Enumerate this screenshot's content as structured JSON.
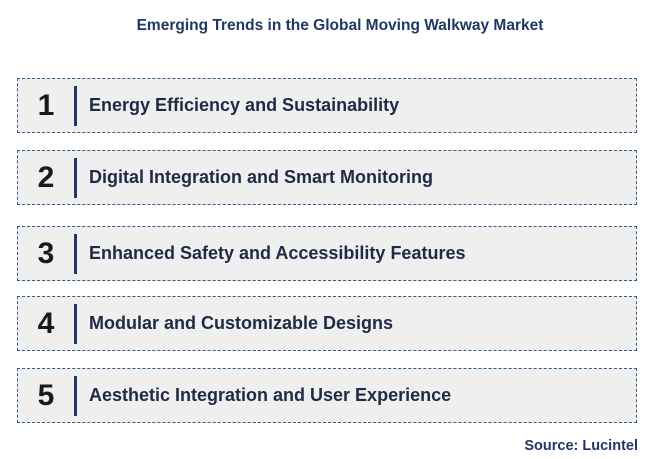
{
  "title": "Emerging Trends in the Global Moving Walkway Market",
  "trends": [
    {
      "number": "1",
      "label": "Energy Efficiency and Sustainability"
    },
    {
      "number": "2",
      "label": "Digital Integration and Smart Monitoring"
    },
    {
      "number": "3",
      "label": "Enhanced Safety and Accessibility Features"
    },
    {
      "number": "4",
      "label": "Modular and Customizable Designs"
    },
    {
      "number": "5",
      "label": "Aesthetic Integration and User Experience"
    }
  ],
  "source": "Source: Lucintel",
  "colors": {
    "title": "#1f3864",
    "box_fill": "#efefef",
    "box_border": "#2e5d8e",
    "divider": "#1f3864",
    "number": "#1a1a1a"
  }
}
